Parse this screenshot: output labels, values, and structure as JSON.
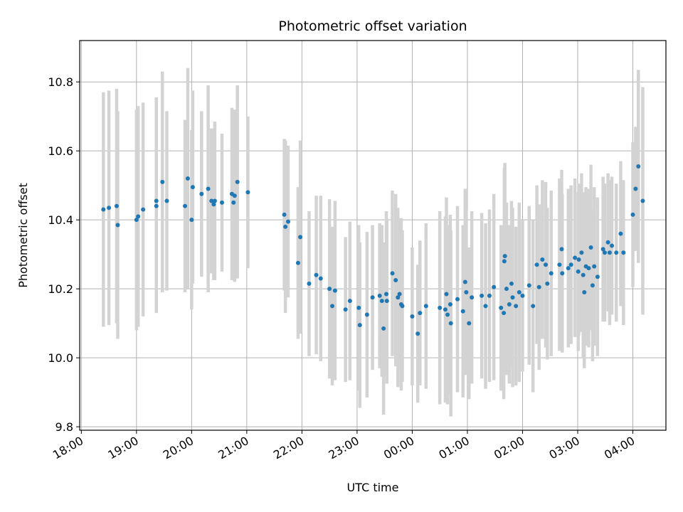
{
  "chart_data": {
    "type": "scatter",
    "title": "Photometric offset variation",
    "xlabel": "UTC time",
    "ylabel": "Photometric offset",
    "x_unit": "hours after 18:00 UTC",
    "xlim": [
      -0.03,
      10.6
    ],
    "ylim": [
      9.79,
      10.92
    ],
    "x_ticks": [
      {
        "value": 0,
        "label": "18:00"
      },
      {
        "value": 1,
        "label": "19:00"
      },
      {
        "value": 2,
        "label": "20:00"
      },
      {
        "value": 3,
        "label": "21:00"
      },
      {
        "value": 4,
        "label": "22:00"
      },
      {
        "value": 5,
        "label": "23:00"
      },
      {
        "value": 6,
        "label": "00:00"
      },
      {
        "value": 7,
        "label": "01:00"
      },
      {
        "value": 8,
        "label": "02:00"
      },
      {
        "value": 9,
        "label": "03:00"
      },
      {
        "value": 10,
        "label": "04:00"
      }
    ],
    "y_ticks": [
      {
        "value": 9.8,
        "label": "9.8"
      },
      {
        "value": 10.0,
        "label": "10.0"
      },
      {
        "value": 10.2,
        "label": "10.2"
      },
      {
        "value": 10.4,
        "label": "10.4"
      },
      {
        "value": 10.6,
        "label": "10.6"
      },
      {
        "value": 10.8,
        "label": "10.8"
      }
    ],
    "grid": true,
    "error_bar_color": "#d3d3d3",
    "point_color": "#1f77b4",
    "points": [
      [
        0.4,
        10.43,
        0.34
      ],
      [
        0.5,
        10.435,
        0.34
      ],
      [
        0.64,
        10.44,
        0.34
      ],
      [
        0.66,
        10.385,
        0.33
      ],
      [
        1.0,
        10.4,
        0.32
      ],
      [
        1.03,
        10.41,
        0.32
      ],
      [
        1.12,
        10.43,
        0.31
      ],
      [
        1.36,
        10.44,
        0.31
      ],
      [
        1.36,
        10.455,
        0.3
      ],
      [
        1.47,
        10.51,
        0.32
      ],
      [
        1.55,
        10.455,
        0.26
      ],
      [
        1.88,
        10.44,
        0.25
      ],
      [
        1.93,
        10.52,
        0.32
      ],
      [
        2.0,
        10.4,
        0.26
      ],
      [
        2.02,
        10.495,
        0.28
      ],
      [
        2.18,
        10.475,
        0.24
      ],
      [
        2.3,
        10.49,
        0.3
      ],
      [
        2.36,
        10.455,
        0.21
      ],
      [
        2.4,
        10.445,
        0.22
      ],
      [
        2.42,
        10.455,
        0.23
      ],
      [
        2.55,
        10.45,
        0.2
      ],
      [
        2.73,
        10.475,
        0.25
      ],
      [
        2.76,
        10.45,
        0.22
      ],
      [
        2.78,
        10.47,
        0.25
      ],
      [
        2.83,
        10.51,
        0.28
      ],
      [
        3.02,
        10.48,
        0.22
      ],
      [
        3.68,
        10.415,
        0.22
      ],
      [
        3.7,
        10.38,
        0.25
      ],
      [
        3.75,
        10.395,
        0.22
      ],
      [
        3.93,
        10.275,
        0.22
      ],
      [
        3.97,
        10.35,
        0.28
      ],
      [
        4.13,
        10.215,
        0.21
      ],
      [
        4.26,
        10.24,
        0.23
      ],
      [
        4.34,
        10.23,
        0.24
      ],
      [
        4.5,
        10.2,
        0.26
      ],
      [
        4.55,
        10.15,
        0.23
      ],
      [
        4.6,
        10.195,
        0.26
      ],
      [
        4.79,
        10.14,
        0.21
      ],
      [
        4.87,
        10.165,
        0.23
      ],
      [
        5.03,
        10.145,
        0.24
      ],
      [
        5.05,
        10.095,
        0.24
      ],
      [
        5.18,
        10.125,
        0.24
      ],
      [
        5.28,
        10.175,
        0.21
      ],
      [
        5.41,
        10.18,
        0.21
      ],
      [
        5.45,
        10.165,
        0.22
      ],
      [
        5.48,
        10.085,
        0.25
      ],
      [
        5.53,
        10.185,
        0.24
      ],
      [
        5.54,
        10.165,
        0.24
      ],
      [
        5.64,
        10.245,
        0.24
      ],
      [
        5.7,
        10.225,
        0.25
      ],
      [
        5.74,
        10.175,
        0.26
      ],
      [
        5.77,
        10.185,
        0.22
      ],
      [
        5.8,
        10.155,
        0.25
      ],
      [
        5.82,
        10.15,
        0.22
      ],
      [
        6.0,
        10.12,
        0.2
      ],
      [
        6.1,
        10.07,
        0.2
      ],
      [
        6.14,
        10.13,
        0.21
      ],
      [
        6.25,
        10.15,
        0.24
      ],
      [
        6.5,
        10.145,
        0.28
      ],
      [
        6.6,
        10.14,
        0.27
      ],
      [
        6.62,
        10.185,
        0.28
      ],
      [
        6.64,
        10.125,
        0.26
      ],
      [
        6.69,
        10.155,
        0.26
      ],
      [
        6.7,
        10.1,
        0.27
      ],
      [
        6.82,
        10.17,
        0.27
      ],
      [
        6.92,
        10.135,
        0.25
      ],
      [
        6.96,
        10.22,
        0.27
      ],
      [
        6.98,
        10.19,
        0.24
      ],
      [
        7.03,
        10.1,
        0.22
      ],
      [
        7.08,
        10.175,
        0.25
      ],
      [
        7.26,
        10.18,
        0.24
      ],
      [
        7.33,
        10.15,
        0.24
      ],
      [
        7.4,
        10.18,
        0.25
      ],
      [
        7.48,
        10.205,
        0.27
      ],
      [
        7.61,
        10.145,
        0.24
      ],
      [
        7.66,
        10.13,
        0.25
      ],
      [
        7.67,
        10.28,
        0.27
      ],
      [
        7.68,
        10.295,
        0.27
      ],
      [
        7.71,
        10.2,
        0.25
      ],
      [
        7.76,
        10.155,
        0.23
      ],
      [
        7.8,
        10.215,
        0.24
      ],
      [
        7.82,
        10.175,
        0.26
      ],
      [
        7.88,
        10.15,
        0.23
      ],
      [
        7.94,
        10.19,
        0.26
      ],
      [
        8.0,
        10.18,
        0.22
      ],
      [
        8.12,
        10.21,
        0.23
      ],
      [
        8.19,
        10.15,
        0.25
      ],
      [
        8.26,
        10.27,
        0.23
      ],
      [
        8.3,
        10.205,
        0.24
      ],
      [
        8.36,
        10.285,
        0.23
      ],
      [
        8.42,
        10.27,
        0.24
      ],
      [
        8.45,
        10.215,
        0.22
      ],
      [
        8.52,
        10.245,
        0.24
      ],
      [
        8.67,
        10.27,
        0.25
      ],
      [
        8.71,
        10.315,
        0.23
      ],
      [
        8.72,
        10.245,
        0.23
      ],
      [
        8.83,
        10.26,
        0.23
      ],
      [
        8.88,
        10.27,
        0.23
      ],
      [
        8.95,
        10.29,
        0.23
      ],
      [
        9.01,
        10.25,
        0.23
      ],
      [
        9.02,
        10.285,
        0.22
      ],
      [
        9.07,
        10.305,
        0.23
      ],
      [
        9.1,
        10.24,
        0.24
      ],
      [
        9.12,
        10.19,
        0.22
      ],
      [
        9.15,
        10.265,
        0.23
      ],
      [
        9.2,
        10.26,
        0.23
      ],
      [
        9.24,
        10.32,
        0.24
      ],
      [
        9.27,
        10.21,
        0.22
      ],
      [
        9.3,
        10.265,
        0.23
      ],
      [
        9.36,
        10.235,
        0.23
      ],
      [
        9.46,
        10.315,
        0.21
      ],
      [
        9.49,
        10.305,
        0.2
      ],
      [
        9.55,
        10.335,
        0.2
      ],
      [
        9.58,
        10.305,
        0.21
      ],
      [
        9.62,
        10.325,
        0.2
      ],
      [
        9.7,
        10.305,
        0.2
      ],
      [
        9.78,
        10.36,
        0.21
      ],
      [
        9.83,
        10.305,
        0.21
      ],
      [
        10.0,
        10.415,
        0.21
      ],
      [
        10.05,
        10.49,
        0.18
      ],
      [
        10.1,
        10.555,
        0.28
      ],
      [
        10.18,
        10.455,
        0.33
      ]
    ]
  }
}
